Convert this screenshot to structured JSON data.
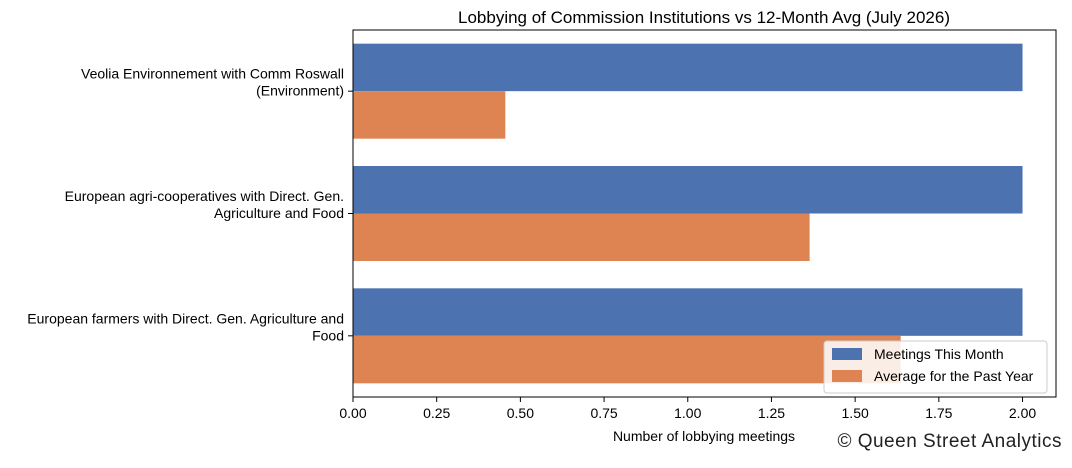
{
  "chart_data": {
    "type": "bar",
    "orientation": "horizontal",
    "title": "Lobbying of Commission Institutions vs 12-Month Avg (July 2026)",
    "xlabel": "Number of lobbying meetings",
    "ylabel": "",
    "xlim": [
      0,
      2.1
    ],
    "x_ticks": [
      "0.00",
      "0.25",
      "0.50",
      "0.75",
      "1.00",
      "1.25",
      "1.50",
      "1.75",
      "2.00"
    ],
    "categories": [
      [
        "Veolia Environnement with Comm Roswall",
        "(Environment)"
      ],
      [
        "European agri-cooperatives with Direct. Gen.",
        "Agriculture and Food"
      ],
      [
        "European farmers with Direct. Gen. Agriculture and",
        "Food"
      ]
    ],
    "series": [
      {
        "name": "Meetings This Month",
        "values": [
          2.0,
          2.0,
          2.0
        ],
        "color": "#4c72b0"
      },
      {
        "name": "Average for the Past Year",
        "values": [
          0.455,
          1.364,
          1.636
        ],
        "color": "#dd8452"
      }
    ],
    "legend_position": "lower-right",
    "grid": false
  },
  "credit": "© Queen Street Analytics"
}
